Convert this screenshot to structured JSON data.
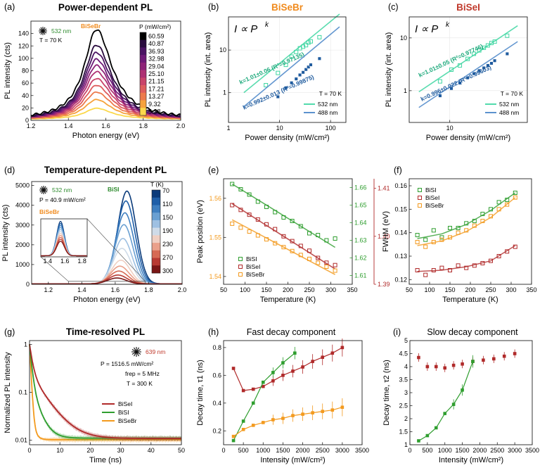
{
  "colors": {
    "blue_dark": "#1f5b9e",
    "blue": "#4a86c8",
    "blue_light": "#8fb4dc",
    "teal": "#3fd6a2",
    "teal_dark": "#1ca97b",
    "red": "#b02a2a",
    "green": "#2f9e2f",
    "orange": "#f39a1e",
    "orange_label": "#f08a1c",
    "red_label": "#c0392b",
    "green_label": "#2e8b2e"
  },
  "chart_data": [
    {
      "id": "a",
      "type": "line",
      "letter": "(a)",
      "title": "Power-dependent PL",
      "material": "BiSeBr",
      "laser": "532 nm",
      "temperature": "T = 70 K",
      "xlabel": "Photon energy (eV)",
      "ylabel": "PL intensity (cts)",
      "xlim": [
        1.2,
        2.0
      ],
      "ylim": [
        0,
        160
      ],
      "xticks": [
        "1.2",
        "1.4",
        "1.6",
        "1.8",
        "2.0"
      ],
      "yticks": [
        "0",
        "20",
        "40",
        "60",
        "80",
        "100",
        "120",
        "140"
      ],
      "colorbar_title": "P (mW/cm²)",
      "colorbar_labels": [
        "60.59",
        "40.87",
        "36.93",
        "32.98",
        "29.04",
        "25.10",
        "21.15",
        "17.21",
        "13.27",
        "9.32",
        "5.38"
      ],
      "peak_center": 1.55,
      "peak_width": 0.08,
      "series_peaks": [
        145,
        120,
        108,
        97,
        87,
        77,
        66,
        55,
        44,
        32,
        18
      ],
      "series_colors": [
        "#000000",
        "#2a0c3e",
        "#4b1363",
        "#6e1a77",
        "#8e2378",
        "#ae3173",
        "#c9446a",
        "#de5d5d",
        "#ed7a4c",
        "#f6a23c",
        "#fbd84b"
      ]
    },
    {
      "id": "b",
      "type": "scatter",
      "letter": "(b)",
      "title": "BiSeBr",
      "equation": "I ∝ P",
      "equation_exp": "k",
      "xlabel": "Power density (mW/cm²)",
      "ylabel": "PL intensity (int. area)",
      "xscale": "log",
      "yscale": "log",
      "xlim": [
        1,
        200
      ],
      "ylim": [
        0.2,
        60
      ],
      "xticks": [
        "1",
        "10",
        "100"
      ],
      "yticks": [
        "1",
        "10"
      ],
      "temperature": "T = 70 K",
      "series": [
        {
          "name": "532 nm",
          "color": "#3fd6a2",
          "fit_label": "k=1.01±0.06 (R²=0.97135)",
          "x": [
            5.4,
            9.3,
            13.3,
            17.2,
            21.2,
            25.1,
            29.0,
            33.0,
            36.9,
            40.9,
            60.6
          ],
          "y": [
            1.5,
            2.9,
            4.5,
            7.0,
            9.0,
            11.0,
            12.0,
            13.0,
            15.0,
            16.0,
            20.0
          ],
          "fit_x": [
            2,
            150
          ],
          "fit_y": [
            1.0,
            70
          ]
        },
        {
          "name": "488 nm",
          "color": "#4a86c8",
          "fit_label": "k=0.992±0.013 (R²=0.99875)",
          "x": [
            9.3,
            13.3,
            17.2,
            21.2,
            25.1,
            29.0,
            33.0,
            36.9,
            40.9,
            60.6
          ],
          "y": [
            0.8,
            1.3,
            1.7,
            2.1,
            2.6,
            3.0,
            3.5,
            4.0,
            4.5,
            6.3
          ],
          "fit_x": [
            2,
            150
          ],
          "fit_y": [
            0.47,
            35
          ]
        }
      ]
    },
    {
      "id": "c",
      "type": "scatter",
      "letter": "(c)",
      "title": "BiSeI",
      "equation": "I ∝ P",
      "equation_exp": "k",
      "xlabel": "Power density (mW/cm²)",
      "ylabel": "PL intensity (int. area)",
      "xscale": "log",
      "yscale": "log",
      "xlim": [
        3,
        100
      ],
      "ylim": [
        0.25,
        25
      ],
      "xticks": [
        "10"
      ],
      "yticks": [
        "1",
        "10"
      ],
      "temperature": "T = 70 K",
      "series": [
        {
          "name": "532 nm",
          "color": "#3fd6a2",
          "fit_label": "k=1.01±0.05 (R²=0.97746)",
          "x": [
            7.5,
            10.5,
            13.5,
            17.0,
            20.5,
            24.0,
            27.5,
            31.0,
            34.5,
            38.0,
            55.0
          ],
          "y": [
            1.5,
            2.5,
            3.0,
            4.0,
            5.0,
            5.8,
            6.5,
            7.2,
            8.0,
            8.5,
            11.0
          ],
          "fit_x": [
            4,
            75
          ],
          "fit_y": [
            0.95,
            17
          ]
        },
        {
          "name": "488 nm",
          "color": "#4a86c8",
          "fit_label": "k=0.996±0.022 (R²=0.99603)",
          "x": [
            7.5,
            10.5,
            13.5,
            17.0,
            20.5,
            24.0,
            27.5,
            31.0,
            34.5,
            38.0,
            55.0
          ],
          "y": [
            0.8,
            1.1,
            1.4,
            1.75,
            2.1,
            2.4,
            2.7,
            3.0,
            3.3,
            3.7,
            5.0
          ],
          "fit_x": [
            4,
            75
          ],
          "fit_y": [
            0.48,
            8.5
          ]
        }
      ]
    },
    {
      "id": "d",
      "type": "line",
      "letter": "(d)",
      "title": "Temperature-dependent PL",
      "material": "BiSI",
      "inset_material": "BiSeBr",
      "laser": "532 nm",
      "power": "P = 40.9 mW/cm²",
      "xlabel": "Photon energy (eV)",
      "ylabel": "PL intensity (cts)",
      "xlim": [
        1.1,
        2.0
      ],
      "ylim": [
        0,
        5200
      ],
      "xticks": [
        "1.2",
        "1.4",
        "1.6",
        "1.8",
        "2.0"
      ],
      "yticks": [
        "0",
        "1000",
        "2000",
        "3000",
        "4000",
        "5000"
      ],
      "inset_xticks": [
        "1.4",
        "1.6",
        "1.8"
      ],
      "colorbar_title": "T (K)",
      "colorbar_labels": [
        "70",
        "110",
        "150",
        "190",
        "230",
        "270",
        "300"
      ],
      "peak_center": 1.67,
      "peak_width": 0.055,
      "series_peaks": [
        4700,
        4200,
        3600,
        3000,
        2300,
        1800,
        1200,
        900,
        650,
        450,
        300
      ],
      "series_colors": [
        "#0b3b7a",
        "#1f5fa8",
        "#3f7fc0",
        "#6aa0d2",
        "#9ec0e2",
        "#cfdbe8",
        "#f0cfc2",
        "#eaa08a",
        "#d66a55",
        "#b83a33",
        "#7a1616"
      ]
    },
    {
      "id": "e",
      "type": "scatter",
      "letter": "(e)",
      "xlabel": "Temperature (K)",
      "ylabel": "Peak position (eV)",
      "xlim": [
        50,
        350
      ],
      "xticks": [
        "50",
        "100",
        "150",
        "200",
        "250",
        "300",
        "350"
      ],
      "left_axis": {
        "label_color": "#f39a1e",
        "ylim": [
          1.538,
          1.565
        ],
        "yticks": [
          "1.54",
          "1.55",
          "1.56"
        ]
      },
      "right_axis_1": {
        "color": "#2f9e2f",
        "ylim": [
          1.605,
          1.665
        ],
        "yticks": [
          "1.61",
          "1.62",
          "1.63",
          "1.64",
          "1.65",
          "1.66"
        ]
      },
      "right_axis_2": {
        "color": "#b02a2a",
        "ylim": [
          1.39,
          1.412
        ],
        "yticks": [
          "1.39",
          "1.40",
          "1.41"
        ]
      },
      "series": [
        {
          "name": "BiSI",
          "color": "#2f9e2f",
          "axis": "right_axis_1",
          "x": [
            70,
            90,
            110,
            130,
            150,
            170,
            190,
            210,
            230,
            250,
            270,
            290,
            310
          ],
          "y": [
            1.662,
            1.659,
            1.656,
            1.652,
            1.649,
            1.646,
            1.643,
            1.641,
            1.638,
            1.634,
            1.633,
            1.63,
            1.631
          ],
          "fit": [
            [
              70,
              1.662
            ],
            [
              310,
              1.626
            ]
          ]
        },
        {
          "name": "BiSeI",
          "color": "#b02a2a",
          "axis": "right_axis_2",
          "x": [
            70,
            90,
            110,
            130,
            150,
            170,
            190,
            210,
            230,
            250,
            270,
            290,
            310
          ],
          "y": [
            1.4065,
            1.4055,
            1.4045,
            1.4035,
            1.4025,
            1.4015,
            1.4,
            1.399,
            1.398,
            1.397,
            1.3955,
            1.3945,
            1.394
          ],
          "fit": [
            [
              70,
              1.4068
            ],
            [
              310,
              1.3932
            ]
          ]
        },
        {
          "name": "BiSeBr",
          "color": "#f39a1e",
          "axis": "left_axis",
          "x": [
            70,
            90,
            110,
            130,
            150,
            170,
            190,
            210,
            230,
            250,
            270,
            290,
            310
          ],
          "y": [
            1.5535,
            1.5525,
            1.5515,
            1.5505,
            1.5495,
            1.5485,
            1.5475,
            1.5465,
            1.5455,
            1.5445,
            1.5435,
            1.5425,
            1.5415
          ],
          "fit": [
            [
              70,
              1.5545
            ],
            [
              310,
              1.5405
            ]
          ]
        }
      ]
    },
    {
      "id": "f",
      "type": "scatter",
      "letter": "(f)",
      "xlabel": "Temperature (K)",
      "ylabel": "FWHM (eV)",
      "xlim": [
        50,
        350
      ],
      "ylim": [
        0.118,
        0.163
      ],
      "xticks": [
        "50",
        "100",
        "150",
        "200",
        "250",
        "300",
        "350"
      ],
      "yticks": [
        "0.12",
        "0.13",
        "0.14",
        "0.15",
        "0.16"
      ],
      "series": [
        {
          "name": "BiSI",
          "color": "#2f9e2f",
          "x": [
            70,
            90,
            110,
            130,
            150,
            170,
            190,
            210,
            230,
            250,
            270,
            290,
            310
          ],
          "y": [
            0.139,
            0.137,
            0.141,
            0.138,
            0.142,
            0.142,
            0.144,
            0.145,
            0.148,
            0.15,
            0.153,
            0.154,
            0.157
          ]
        },
        {
          "name": "BiSeI",
          "color": "#b02a2a",
          "x": [
            70,
            90,
            110,
            130,
            150,
            170,
            190,
            210,
            230,
            250,
            270,
            290,
            310
          ],
          "y": [
            0.124,
            0.122,
            0.124,
            0.125,
            0.124,
            0.126,
            0.125,
            0.126,
            0.127,
            0.128,
            0.13,
            0.132,
            0.134
          ]
        },
        {
          "name": "BiSeBr",
          "color": "#f39a1e",
          "x": [
            70,
            90,
            110,
            130,
            150,
            170,
            190,
            210,
            230,
            250,
            270,
            290,
            310
          ],
          "y": [
            0.136,
            0.134,
            0.136,
            0.137,
            0.138,
            0.14,
            0.141,
            0.143,
            0.145,
            0.147,
            0.15,
            0.152,
            0.155
          ]
        }
      ],
      "fits": {
        "BiSI": [
          [
            70,
            0.1375
          ],
          [
            130,
            0.1395
          ],
          [
            190,
            0.1435
          ],
          [
            250,
            0.1495
          ],
          [
            310,
            0.157
          ]
        ],
        "BiSeI": [
          [
            70,
            0.1235
          ],
          [
            130,
            0.124
          ],
          [
            190,
            0.1255
          ],
          [
            250,
            0.128
          ],
          [
            310,
            0.1345
          ]
        ],
        "BiSeBr": [
          [
            70,
            0.1345
          ],
          [
            130,
            0.1365
          ],
          [
            190,
            0.1405
          ],
          [
            250,
            0.1465
          ],
          [
            310,
            0.155
          ]
        ]
      }
    },
    {
      "id": "g",
      "type": "line",
      "letter": "(g)",
      "title": "Time-resolved PL",
      "laser": "639 nm",
      "power": "P = 1516.5 mW/cm²",
      "frep": "frep = 5 MHz",
      "temperature": "T = 300 K",
      "xlabel": "Time (ns)",
      "ylabel": "Normalized PL intensity",
      "xlim": [
        0,
        50
      ],
      "yscale": "log",
      "ylim": [
        0.008,
        1.2
      ],
      "xticks": [
        "0",
        "10",
        "20",
        "30",
        "40",
        "50"
      ],
      "yticks": [
        "0.01",
        "0.1",
        "1"
      ],
      "series": [
        {
          "name": "BiSeI",
          "color": "#b02a2a",
          "a1": 0.75,
          "t1": 0.8,
          "a2": 0.25,
          "t2": 4.3,
          "floor": 0.0108
        },
        {
          "name": "BiSI",
          "color": "#2f9e2f",
          "a1": 0.85,
          "t1": 0.6,
          "a2": 0.15,
          "t2": 2.2,
          "floor": 0.011
        },
        {
          "name": "BiSeBr",
          "color": "#f39a1e",
          "a1": 0.97,
          "t1": 0.35,
          "a2": 0.03,
          "t2": 1.0,
          "floor": 0.0102
        }
      ]
    },
    {
      "id": "h",
      "type": "line",
      "letter": "(h)",
      "title": "Fast decay component",
      "xlabel": "Intensity (mW/cm²)",
      "ylabel": "Decay time, τ1 (ns)",
      "xlim": [
        0,
        3500
      ],
      "ylim": [
        0.1,
        0.85
      ],
      "xticks": [
        "0",
        "500",
        "1000",
        "1500",
        "2000",
        "2500",
        "3000",
        "3500"
      ],
      "yticks": [
        "0.2",
        "0.4",
        "0.6",
        "0.8"
      ],
      "series": [
        {
          "name": "BiSeI",
          "color": "#b02a2a",
          "x": [
            250,
            500,
            750,
            1000,
            1250,
            1500,
            1750,
            2000,
            2250,
            2500,
            2750,
            3000
          ],
          "y": [
            0.65,
            0.49,
            0.5,
            0.52,
            0.56,
            0.6,
            0.63,
            0.66,
            0.7,
            0.73,
            0.76,
            0.8
          ]
        },
        {
          "name": "BiSI",
          "color": "#2f9e2f",
          "x": [
            250,
            500,
            750,
            1000,
            1250,
            1500,
            1800
          ],
          "y": [
            0.13,
            0.27,
            0.4,
            0.55,
            0.62,
            0.69,
            0.76
          ]
        },
        {
          "name": "BiSeBr",
          "color": "#f39a1e",
          "x": [
            250,
            500,
            750,
            1000,
            1250,
            1500,
            1750,
            2000,
            2250,
            2500,
            2750,
            3000
          ],
          "y": [
            0.16,
            0.21,
            0.24,
            0.26,
            0.28,
            0.29,
            0.31,
            0.32,
            0.33,
            0.34,
            0.35,
            0.37
          ]
        }
      ]
    },
    {
      "id": "i",
      "type": "line",
      "letter": "(i)",
      "title": "Slow decay component",
      "xlabel": "Intensity (mW/cm²)",
      "ylabel": "Decay time, τ2 (ns)",
      "xlim": [
        0,
        3500
      ],
      "ylim": [
        1,
        5
      ],
      "xticks": [
        "0",
        "500",
        "1000",
        "1500",
        "2000",
        "2500",
        "3000",
        "3500"
      ],
      "yticks": [
        "1",
        "1.5",
        "2",
        "2.5",
        "3",
        "3.5",
        "4",
        "4.5",
        "5"
      ],
      "series": [
        {
          "name": "BiSeI",
          "color": "#b02a2a",
          "markers_only": true,
          "x": [
            250,
            500,
            750,
            1000,
            1250,
            1500,
            1800,
            2100,
            2400,
            2700,
            3000
          ],
          "y": [
            4.35,
            4.0,
            4.0,
            3.95,
            4.05,
            4.1,
            4.2,
            4.25,
            4.3,
            4.4,
            4.5
          ]
        },
        {
          "name": "BiSI",
          "color": "#2f9e2f",
          "x": [
            250,
            500,
            750,
            1000,
            1250,
            1500,
            1800
          ],
          "y": [
            1.15,
            1.35,
            1.65,
            2.2,
            2.55,
            3.1,
            4.2
          ]
        }
      ]
    }
  ]
}
